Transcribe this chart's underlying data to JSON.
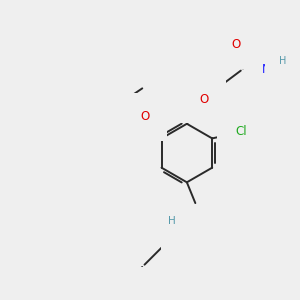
{
  "bg_color": "#efefef",
  "bond_color": "#2a2a2a",
  "bond_width": 1.4,
  "atom_colors": {
    "O": "#e00000",
    "N": "#2020ff",
    "Cl": "#20aa20",
    "H_N": "#5599aa",
    "H_NH2": "#5599aa"
  },
  "figsize": [
    3.0,
    3.0
  ],
  "dpi": 100
}
